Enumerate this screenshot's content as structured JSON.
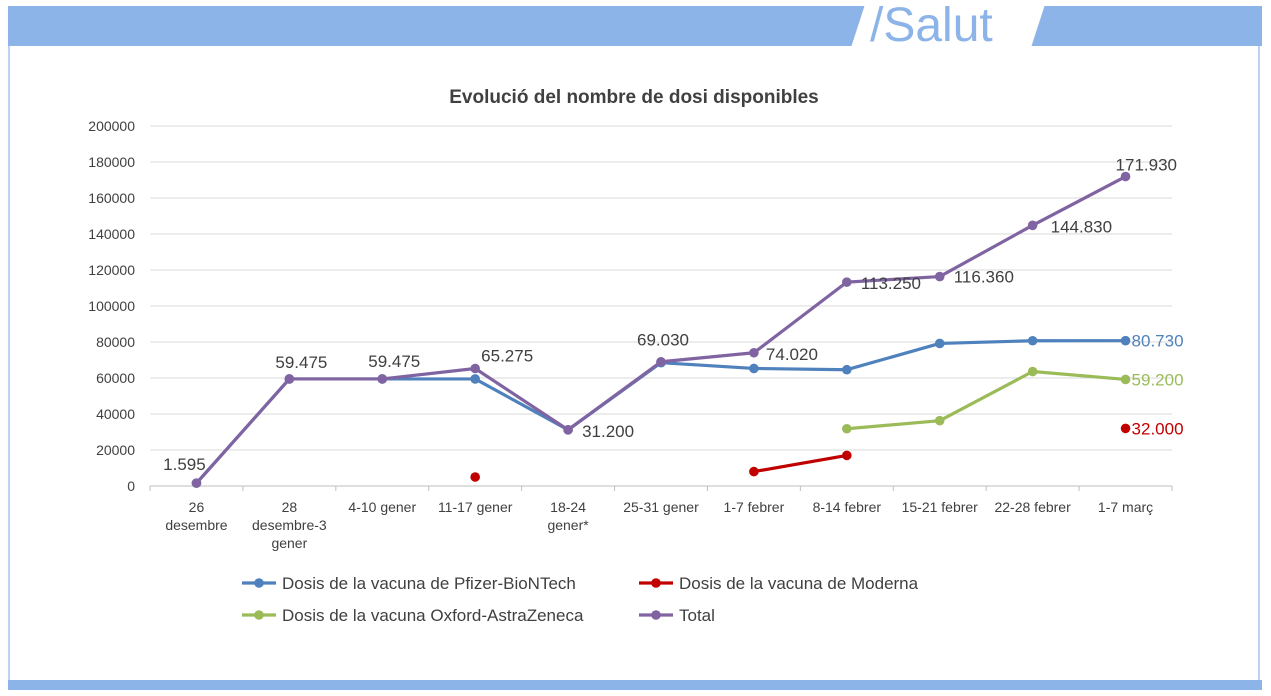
{
  "brand": {
    "text": "/Salut"
  },
  "chart_data": {
    "type": "line",
    "title": "Evolució del nombre de dosi disponibles",
    "xlabel": "",
    "ylabel": "",
    "ylim": [
      0,
      200000
    ],
    "yticks": [
      "0",
      "20000",
      "40000",
      "60000",
      "80000",
      "100000",
      "120000",
      "140000",
      "160000",
      "180000",
      "200000"
    ],
    "grid": true,
    "legend_position": "bottom",
    "categories": [
      [
        "26",
        "desembre"
      ],
      [
        "28",
        "desembre-3",
        "gener"
      ],
      [
        "4-10 gener"
      ],
      [
        "11-17 gener"
      ],
      [
        "18-24",
        "gener*"
      ],
      [
        "25-31 gener"
      ],
      [
        "1-7 febrer"
      ],
      [
        "8-14 febrer"
      ],
      [
        "15-21 febrer"
      ],
      [
        "22-28 febrer"
      ],
      [
        "1-7 març"
      ]
    ],
    "series": [
      {
        "name": "Dosis de la vacuna de Pfizer-BioNTech",
        "color": "#4f81bd",
        "values": [
          1595,
          59475,
          59475,
          59475,
          31200,
          68500,
          65300,
          64600,
          79200,
          80700,
          80730
        ],
        "labels": [
          null,
          null,
          null,
          null,
          null,
          null,
          null,
          null,
          null,
          null,
          "80.730"
        ]
      },
      {
        "name": "Dosis de la vacuna de Moderna",
        "color": "#c00000",
        "values": [
          null,
          null,
          null,
          5000,
          null,
          null,
          8000,
          17000,
          null,
          null,
          32000
        ],
        "labels": [
          null,
          null,
          null,
          null,
          null,
          null,
          null,
          null,
          null,
          null,
          "32.000"
        ]
      },
      {
        "name": "Dosis de la vacuna Oxford-AstraZeneca",
        "color": "#9bbb59",
        "values": [
          null,
          null,
          null,
          null,
          null,
          null,
          null,
          31800,
          36300,
          63600,
          59200
        ],
        "labels": [
          null,
          null,
          null,
          null,
          null,
          null,
          null,
          null,
          null,
          null,
          "59.200"
        ]
      },
      {
        "name": "Total",
        "color": "#8064a2",
        "values": [
          1595,
          59475,
          59475,
          65275,
          31200,
          69030,
          74020,
          113250,
          116360,
          144830,
          171930
        ],
        "labels": [
          "1.595",
          "59.475",
          "59.475",
          "65.275",
          "31.200",
          "69.030",
          "74.020",
          "113.250",
          "116.360",
          "144.830",
          "171.930"
        ]
      }
    ]
  }
}
